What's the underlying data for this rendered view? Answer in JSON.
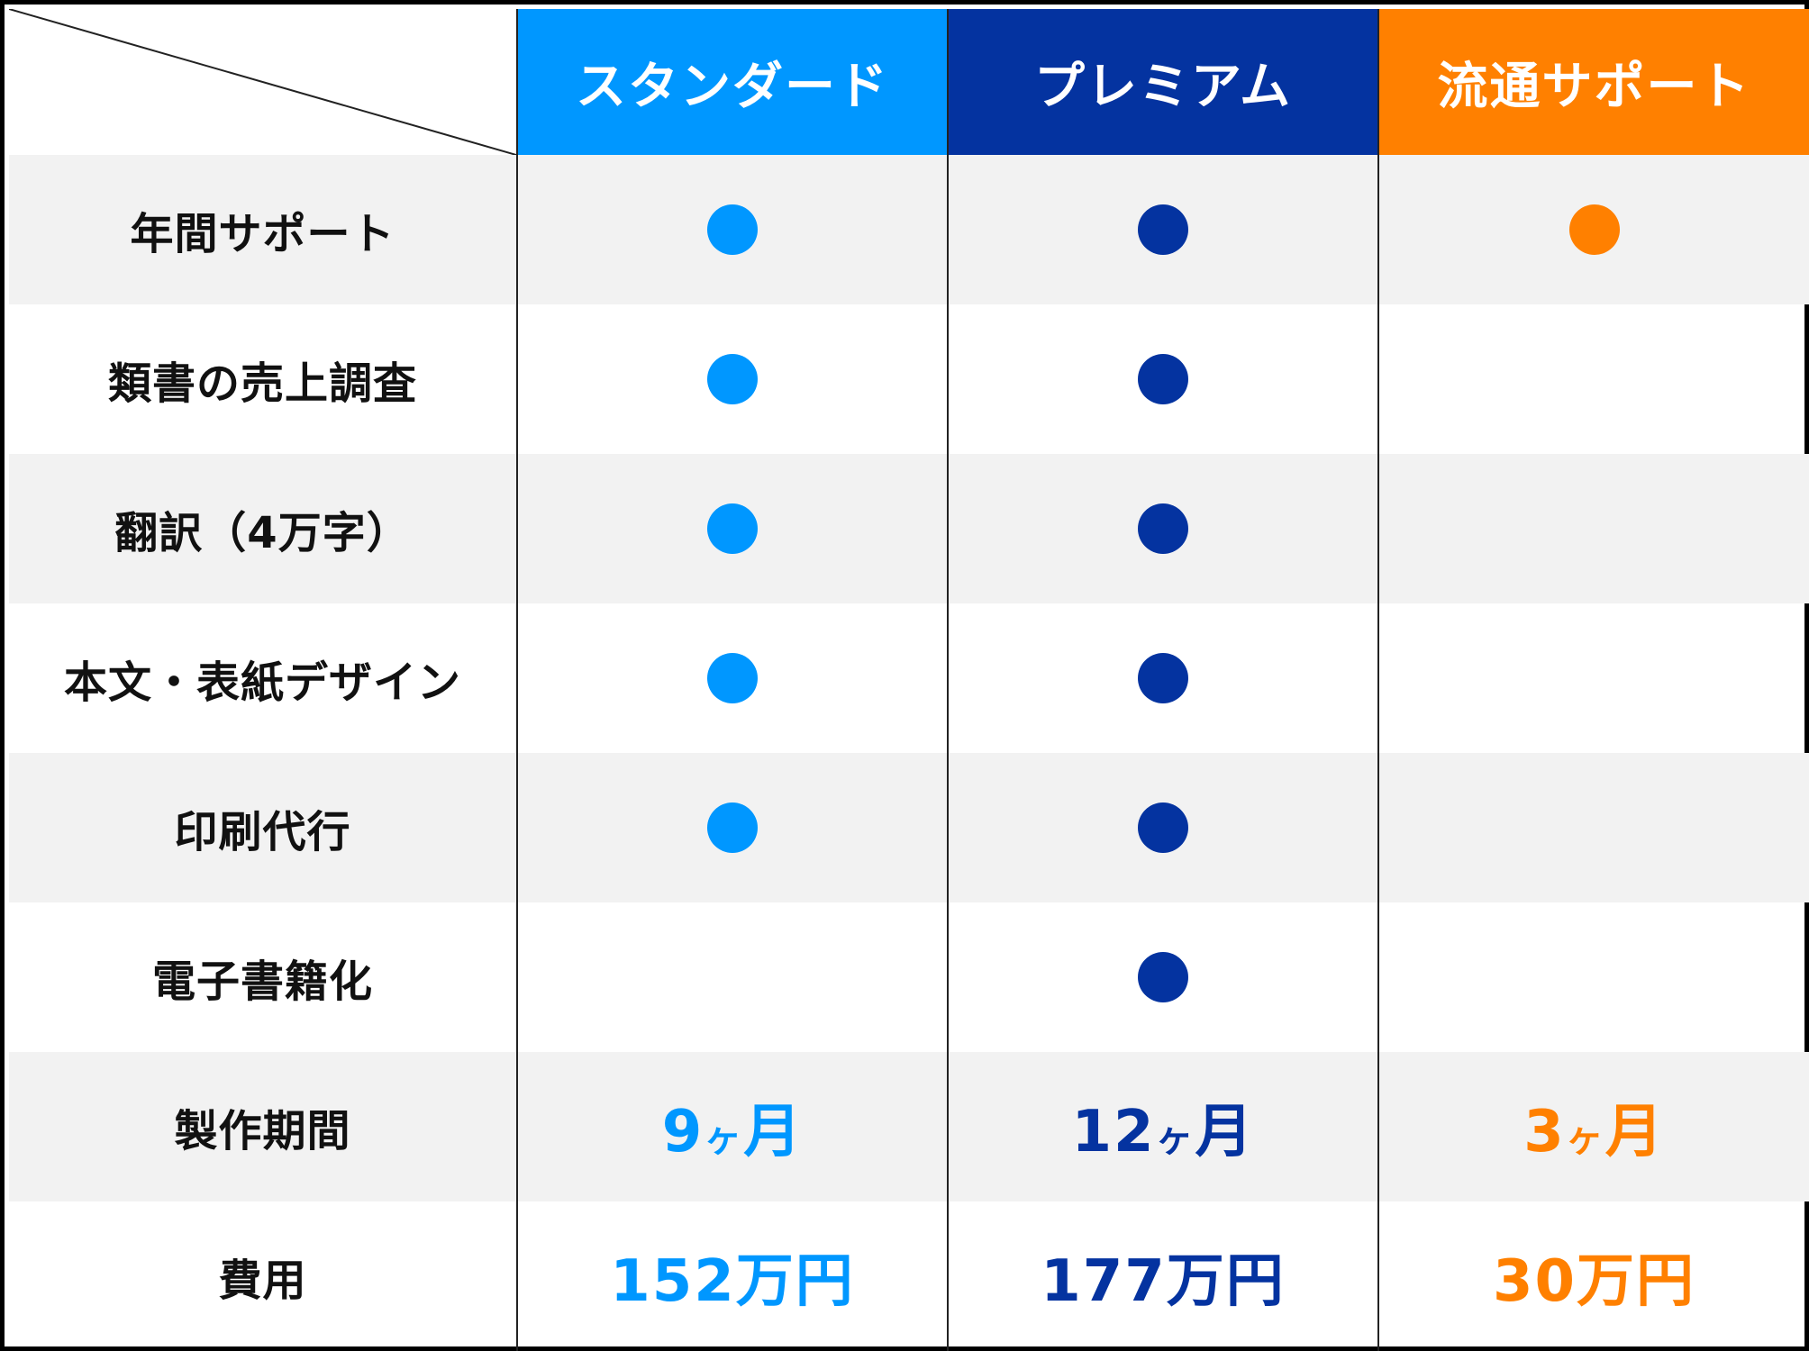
{
  "columns": [
    {
      "label": "スタンダード",
      "color": "#0097ff"
    },
    {
      "label": "プレミアム",
      "color": "#0433a0"
    },
    {
      "label": "流通サポート",
      "color": "#ff8000"
    }
  ],
  "rows": [
    {
      "label": "年間サポート",
      "marks": [
        true,
        true,
        true
      ]
    },
    {
      "label": "類書の売上調査",
      "marks": [
        true,
        true,
        false
      ]
    },
    {
      "label": "翻訳（4万字）",
      "marks": [
        true,
        true,
        false
      ]
    },
    {
      "label": "本文・表紙デザイン",
      "marks": [
        true,
        true,
        false
      ]
    },
    {
      "label": "印刷代行",
      "marks": [
        true,
        true,
        false
      ]
    },
    {
      "label": "電子書籍化",
      "marks": [
        false,
        true,
        false
      ]
    }
  ],
  "period": {
    "label": "製作期間",
    "values": [
      {
        "num": "9",
        "unit_small": "ヶ",
        "unit": "月"
      },
      {
        "num": "12",
        "unit_small": "ヶ",
        "unit": "月"
      },
      {
        "num": "3",
        "unit_small": "ヶ",
        "unit": "月"
      }
    ]
  },
  "cost": {
    "label": "費用",
    "values": [
      "152万円",
      "177万円",
      "30万円"
    ]
  },
  "shade_color": "#f2f2f2"
}
